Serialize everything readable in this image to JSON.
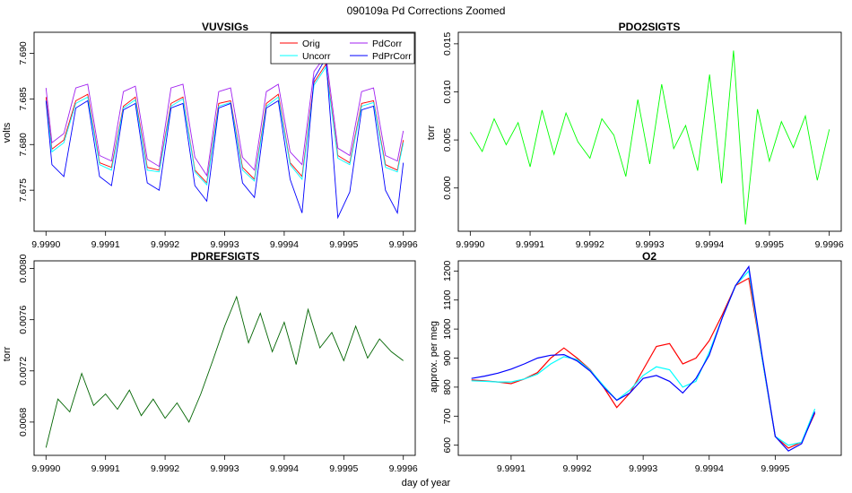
{
  "page_title": "090109a   Pd Corrections Zoomed",
  "xlabel": "day of year",
  "colors": {
    "orig": "#ff0000",
    "uncorr": "#00ffff",
    "pdcorr": "#a020f0",
    "pdprcorr": "#0000ff",
    "pdo2": "#00ff00",
    "pdref": "#006400"
  },
  "chart_data": [
    {
      "id": "vuvsigs",
      "type": "line",
      "title": "VUVSIGs",
      "ylabel": "volts",
      "xlim": [
        9.99898,
        9.99962
      ],
      "ylim": [
        7.6705,
        7.6923
      ],
      "xticks": [
        9.999,
        9.9991,
        9.9992,
        9.9993,
        9.9994,
        9.9995,
        9.9996
      ],
      "xtick_labels": [
        "9.9990",
        "9.9991",
        "9.9992",
        "9.9993",
        "9.9994",
        "9.9995",
        "9.9996"
      ],
      "yticks": [
        7.675,
        7.68,
        7.685,
        7.69
      ],
      "ytick_labels": [
        "7.675",
        "7.680",
        "7.685",
        "7.690"
      ],
      "legend": [
        {
          "label": "Orig",
          "color_key": "orig"
        },
        {
          "label": "Uncorr",
          "color_key": "uncorr"
        },
        {
          "label": "PdCorr",
          "color_key": "pdcorr"
        },
        {
          "label": "PdPrCorr",
          "color_key": "pdprcorr"
        }
      ],
      "legend_position": "top-right",
      "series": [
        {
          "name": "Orig",
          "color_key": "orig",
          "x": [
            9.999,
            9.99901,
            9.99903,
            9.99905,
            9.99907,
            9.99909,
            9.99911,
            9.99913,
            9.99915,
            9.99917,
            9.99919,
            9.99921,
            9.99923,
            9.99925,
            9.99927,
            9.99929,
            9.99931,
            9.99933,
            9.99935,
            9.99937,
            9.99939,
            9.99941,
            9.99943,
            9.99945,
            9.99947,
            9.99949,
            9.99951,
            9.99953,
            9.99955,
            9.99957,
            9.99959,
            9.9996
          ],
          "values": [
            7.6852,
            7.6795,
            7.6805,
            7.6848,
            7.6855,
            7.678,
            7.6775,
            7.6842,
            7.6852,
            7.6775,
            7.6772,
            7.6845,
            7.6852,
            7.6772,
            7.6758,
            7.6845,
            7.6848,
            7.6775,
            7.6762,
            7.6845,
            7.6855,
            7.678,
            7.6765,
            7.6868,
            7.6888,
            7.6788,
            7.678,
            7.6845,
            7.6848,
            7.6778,
            7.6772,
            7.6805
          ]
        },
        {
          "name": "Uncorr",
          "color_key": "uncorr",
          "x": [
            9.999,
            9.99901,
            9.99903,
            9.99905,
            9.99907,
            9.99909,
            9.99911,
            9.99913,
            9.99915,
            9.99917,
            9.99919,
            9.99921,
            9.99923,
            9.99925,
            9.99927,
            9.99929,
            9.99931,
            9.99933,
            9.99935,
            9.99937,
            9.99939,
            9.99941,
            9.99943,
            9.99945,
            9.99947,
            9.99949,
            9.99951,
            9.99953,
            9.99955,
            9.99957,
            9.99959,
            9.9996
          ],
          "values": [
            7.6848,
            7.6792,
            7.6802,
            7.6845,
            7.6852,
            7.6778,
            7.6772,
            7.684,
            7.6849,
            7.6772,
            7.677,
            7.6842,
            7.685,
            7.677,
            7.6756,
            7.6842,
            7.6846,
            7.6772,
            7.676,
            7.6842,
            7.6852,
            7.6778,
            7.6762,
            7.6865,
            7.6885,
            7.6785,
            7.6778,
            7.6842,
            7.6846,
            7.6775,
            7.677,
            7.6802
          ]
        },
        {
          "name": "PdCorr",
          "color_key": "pdcorr",
          "x": [
            9.999,
            9.99901,
            9.99903,
            9.99905,
            9.99907,
            9.99909,
            9.99911,
            9.99913,
            9.99915,
            9.99917,
            9.99919,
            9.99921,
            9.99923,
            9.99925,
            9.99927,
            9.99929,
            9.99931,
            9.99933,
            9.99935,
            9.99937,
            9.99939,
            9.99941,
            9.99943,
            9.99945,
            9.99947,
            9.99949,
            9.99951,
            9.99953,
            9.99955,
            9.99957,
            9.99959,
            9.9996
          ],
          "values": [
            7.6862,
            7.6802,
            7.6812,
            7.6862,
            7.6866,
            7.6788,
            7.6782,
            7.6858,
            7.6864,
            7.6784,
            7.6776,
            7.6862,
            7.6866,
            7.6786,
            7.6766,
            7.6858,
            7.6862,
            7.6786,
            7.6772,
            7.6858,
            7.6866,
            7.6792,
            7.6778,
            7.688,
            7.6898,
            7.6796,
            7.6788,
            7.6858,
            7.6862,
            7.6788,
            7.6782,
            7.6815
          ]
        },
        {
          "name": "PdPrCorr",
          "color_key": "pdprcorr",
          "x": [
            9.999,
            9.99901,
            9.99903,
            9.99905,
            9.99907,
            9.99909,
            9.99911,
            9.99913,
            9.99915,
            9.99917,
            9.99919,
            9.99921,
            9.99923,
            9.99925,
            9.99927,
            9.99929,
            9.99931,
            9.99933,
            9.99935,
            9.99937,
            9.99939,
            9.99941,
            9.99943,
            9.99945,
            9.99947,
            9.99949,
            9.99951,
            9.99953,
            9.99955,
            9.99957,
            9.99959,
            9.9996
          ],
          "values": [
            7.6848,
            7.6778,
            7.6765,
            7.684,
            7.6848,
            7.6765,
            7.6755,
            7.6838,
            7.6845,
            7.6758,
            7.675,
            7.684,
            7.6845,
            7.6755,
            7.6738,
            7.684,
            7.6845,
            7.6758,
            7.6742,
            7.684,
            7.6848,
            7.6762,
            7.6725,
            7.6872,
            7.6895,
            7.672,
            7.6748,
            7.6838,
            7.6842,
            7.675,
            7.6725,
            7.678
          ]
        }
      ]
    },
    {
      "id": "pdo2sigts",
      "type": "line",
      "title": "PDO2SIGTS",
      "ylabel": "torr",
      "xlim": [
        9.99898,
        9.99962
      ],
      "ylim": [
        -0.0045,
        0.0162
      ],
      "xticks": [
        9.999,
        9.9991,
        9.9992,
        9.9993,
        9.9994,
        9.9995,
        9.9996
      ],
      "xtick_labels": [
        "9.9990",
        "9.9991",
        "9.9992",
        "9.9993",
        "9.9994",
        "9.9995",
        "9.9996"
      ],
      "yticks": [
        0.0,
        0.005,
        0.01,
        0.015
      ],
      "ytick_labels": [
        "0.000",
        "0.005",
        "0.010",
        "0.015"
      ],
      "series": [
        {
          "name": "PDO2SIGTS",
          "color_key": "pdo2",
          "x": [
            9.999,
            9.99902,
            9.99904,
            9.99906,
            9.99908,
            9.9991,
            9.99912,
            9.99914,
            9.99916,
            9.99918,
            9.9992,
            9.99922,
            9.99924,
            9.99926,
            9.99928,
            9.9993,
            9.99932,
            9.99934,
            9.99936,
            9.99938,
            9.9994,
            9.99942,
            9.99944,
            9.99946,
            9.99948,
            9.9995,
            9.99952,
            9.99954,
            9.99956,
            9.99958,
            9.9996
          ],
          "values": [
            0.0058,
            0.0038,
            0.0072,
            0.0045,
            0.0068,
            0.0022,
            0.0081,
            0.0035,
            0.0078,
            0.0048,
            0.0031,
            0.0072,
            0.0055,
            0.0012,
            0.0092,
            0.0025,
            0.0108,
            0.0041,
            0.0065,
            0.0018,
            0.0118,
            0.0005,
            0.0143,
            -0.0038,
            0.0082,
            0.0028,
            0.0069,
            0.0042,
            0.0075,
            0.0008,
            0.0061
          ]
        }
      ]
    },
    {
      "id": "pdrefsigts",
      "type": "line",
      "title": "PDREFSIGTS",
      "ylabel": "torr",
      "xlim": [
        9.99898,
        9.99962
      ],
      "ylim": [
        0.00654,
        0.00806
      ],
      "xticks": [
        9.999,
        9.9991,
        9.9992,
        9.9993,
        9.9994,
        9.9995,
        9.9996
      ],
      "xtick_labels": [
        "9.9990",
        "9.9991",
        "9.9992",
        "9.9993",
        "9.9994",
        "9.9995",
        "9.9996"
      ],
      "yticks": [
        0.0068,
        0.0072,
        0.0076,
        0.008
      ],
      "ytick_labels": [
        "0.0068",
        "0.0072",
        "0.0076",
        "0.0080"
      ],
      "series": [
        {
          "name": "PDREFSIGTS",
          "color_key": "pdref",
          "x": [
            9.999,
            9.99902,
            9.99904,
            9.99906,
            9.99908,
            9.9991,
            9.99912,
            9.99914,
            9.99916,
            9.99918,
            9.9992,
            9.99922,
            9.99924,
            9.99926,
            9.99928,
            9.9993,
            9.99932,
            9.99934,
            9.99936,
            9.99938,
            9.9994,
            9.99942,
            9.99944,
            9.99946,
            9.99948,
            9.9995,
            9.99952,
            9.99954,
            9.99956,
            9.99958,
            9.9996
          ],
          "values": [
            0.0066,
            0.00698,
            0.00688,
            0.00718,
            0.00693,
            0.00702,
            0.0069,
            0.00705,
            0.00685,
            0.00698,
            0.00683,
            0.00695,
            0.0068,
            0.00702,
            0.00728,
            0.00755,
            0.00778,
            0.00742,
            0.00765,
            0.00735,
            0.00758,
            0.00725,
            0.00768,
            0.00738,
            0.0075,
            0.00728,
            0.00755,
            0.0073,
            0.00745,
            0.00735,
            0.00728
          ]
        }
      ]
    },
    {
      "id": "o2",
      "type": "line",
      "title": "O2",
      "ylabel": "approx. per meg",
      "xlim": [
        9.99902,
        9.9996
      ],
      "ylim": [
        565,
        1235
      ],
      "xticks": [
        9.9991,
        9.9992,
        9.9993,
        9.9994,
        9.9995
      ],
      "xtick_labels": [
        "9.9991",
        "9.9992",
        "9.9993",
        "9.9994",
        "9.9995"
      ],
      "yticks": [
        600,
        700,
        800,
        900,
        1000,
        1100,
        1200
      ],
      "ytick_labels": [
        "600",
        "700",
        "800",
        "900",
        "1000",
        "1100",
        "1200"
      ],
      "series": [
        {
          "name": "Orig",
          "color_key": "orig",
          "x": [
            9.99904,
            9.99906,
            9.99908,
            9.9991,
            9.99912,
            9.99914,
            9.99916,
            9.99918,
            9.9992,
            9.99922,
            9.99924,
            9.99926,
            9.99928,
            9.9993,
            9.99932,
            9.99934,
            9.99936,
            9.99938,
            9.9994,
            9.99942,
            9.99944,
            9.99946,
            9.99948,
            9.9995,
            9.99952,
            9.99954,
            9.99956
          ],
          "values": [
            825,
            822,
            818,
            812,
            828,
            850,
            900,
            935,
            900,
            860,
            800,
            730,
            780,
            860,
            940,
            950,
            880,
            900,
            960,
            1050,
            1150,
            1175,
            900,
            630,
            590,
            610,
            710
          ]
        },
        {
          "name": "Uncorr",
          "color_key": "uncorr",
          "x": [
            9.99904,
            9.99906,
            9.99908,
            9.9991,
            9.99912,
            9.99914,
            9.99916,
            9.99918,
            9.9992,
            9.99922,
            9.99924,
            9.99926,
            9.99928,
            9.9993,
            9.99932,
            9.99934,
            9.99936,
            9.99938,
            9.9994,
            9.99942,
            9.99944,
            9.99946,
            9.99948,
            9.9995,
            9.99952,
            9.99954,
            9.99956
          ],
          "values": [
            822,
            820,
            818,
            818,
            828,
            845,
            880,
            905,
            895,
            858,
            805,
            755,
            790,
            840,
            870,
            860,
            800,
            820,
            920,
            1040,
            1150,
            1200,
            900,
            630,
            600,
            610,
            725
          ]
        },
        {
          "name": "PdPrCorr",
          "color_key": "pdprcorr",
          "x": [
            9.99904,
            9.99906,
            9.99908,
            9.9991,
            9.99912,
            9.99914,
            9.99916,
            9.99918,
            9.9992,
            9.99922,
            9.99924,
            9.99926,
            9.99928,
            9.9993,
            9.99932,
            9.99934,
            9.99936,
            9.99938,
            9.9994,
            9.99942,
            9.99944,
            9.99946,
            9.99948,
            9.9995,
            9.99952,
            9.99954,
            9.99956
          ],
          "values": [
            830,
            838,
            848,
            862,
            880,
            900,
            910,
            912,
            890,
            855,
            800,
            755,
            780,
            830,
            840,
            820,
            780,
            830,
            910,
            1040,
            1150,
            1215,
            910,
            630,
            580,
            605,
            715
          ]
        }
      ]
    }
  ]
}
